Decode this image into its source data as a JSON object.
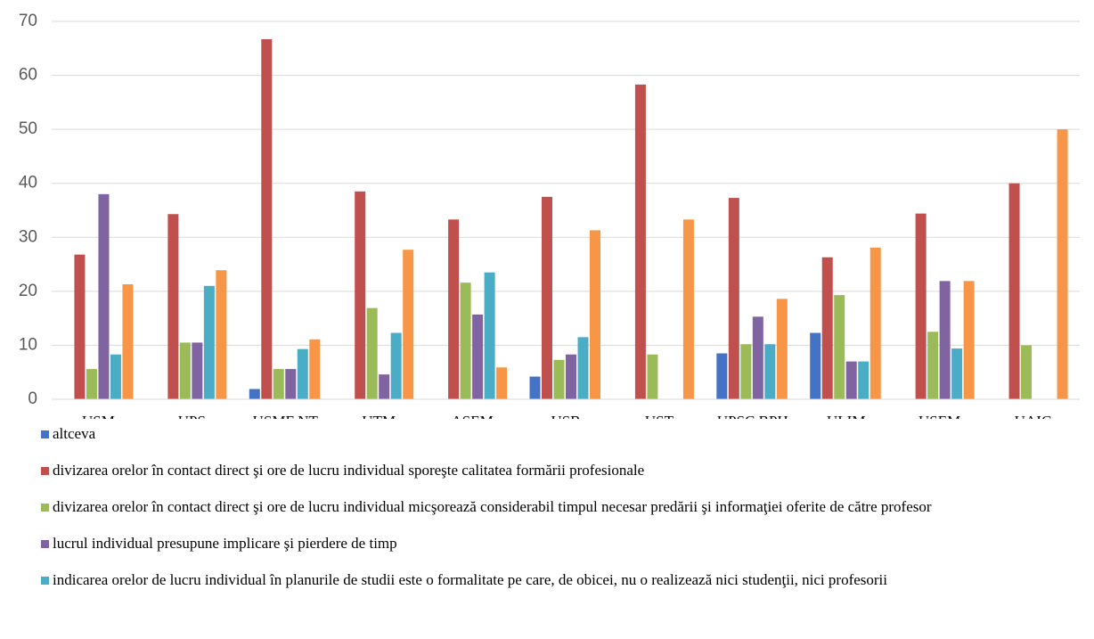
{
  "chart_data": {
    "type": "bar",
    "categories": [
      "USM",
      "UPS Creanga",
      "USMF NT",
      "UTM",
      "ASEM",
      "USB Russo",
      "UST",
      "UPSC BPH",
      "ULIM",
      "USEM",
      "UAIC Balti"
    ],
    "series": [
      {
        "name": "altceva",
        "color": "#4472c4",
        "values": [
          0,
          0,
          1.9,
          0,
          0,
          4.2,
          0,
          8.5,
          12.3,
          0,
          0
        ]
      },
      {
        "name": "divizarea orelor în contact direct şi ore de lucru individual sporeşte calitatea formării profesionale",
        "color": "#c0504d",
        "values": [
          26.8,
          34.3,
          66.7,
          38.5,
          33.3,
          37.5,
          58.3,
          37.3,
          26.3,
          34.4,
          40
        ]
      },
      {
        "name": "divizarea orelor în contact direct şi ore de lucru individual  micşorează considerabil timpul necesar predării şi informaţiei oferite de către profesor",
        "color": "#9bbb59",
        "values": [
          5.6,
          10.5,
          5.6,
          16.9,
          21.6,
          7.3,
          8.3,
          10.2,
          19.3,
          12.5,
          10
        ]
      },
      {
        "name": "lucrul individual  presupune implicare şi pierdere de timp",
        "color": "#8064a2",
        "values": [
          38,
          10.5,
          5.6,
          4.6,
          15.7,
          8.3,
          0,
          15.3,
          7.0,
          21.9,
          0
        ]
      },
      {
        "name": "indicarea orelor de lucru individual în planurile de studii este o formalitate pe care, de obicei, nu o realizează nici studenţii, nici profesorii",
        "color": "#4bacc6",
        "values": [
          8.3,
          21,
          9.3,
          12.3,
          23.5,
          11.5,
          0,
          10.2,
          7.0,
          9.4,
          0
        ]
      },
      {
        "color": "#f79646",
        "values": [
          21.3,
          23.9,
          11.1,
          27.7,
          5.9,
          31.3,
          33.3,
          18.6,
          28.1,
          21.9,
          50
        ]
      }
    ],
    "ylim": [
      0,
      70
    ],
    "yticks": [
      0,
      10,
      20,
      30,
      40,
      50,
      60,
      70
    ],
    "grid": true
  }
}
